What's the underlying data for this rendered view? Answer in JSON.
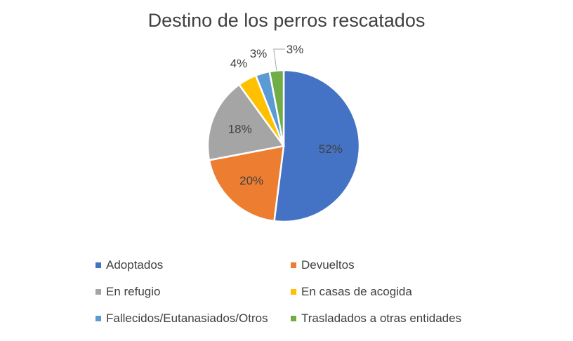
{
  "chart_data": {
    "type": "pie",
    "title": "Destino de los perros rescatados",
    "slices": [
      {
        "label": "Adoptados",
        "value": 52,
        "display": "52%",
        "color": "#4472C4"
      },
      {
        "label": "Devueltos",
        "value": 20,
        "display": "20%",
        "color": "#ED7D31"
      },
      {
        "label": "En refugio",
        "value": 18,
        "display": "18%",
        "color": "#A5A5A5"
      },
      {
        "label": "En casas de acogida",
        "value": 4,
        "display": "4%",
        "color": "#FFC000"
      },
      {
        "label": "Fallecidos/Eutanasiados/Otros",
        "value": 3,
        "display": "3%",
        "color": "#5B9BD5"
      },
      {
        "label": "Trasladados a otras entidades",
        "value": 3,
        "display": "3%",
        "color": "#70AD47"
      }
    ],
    "legend_position": "bottom"
  }
}
